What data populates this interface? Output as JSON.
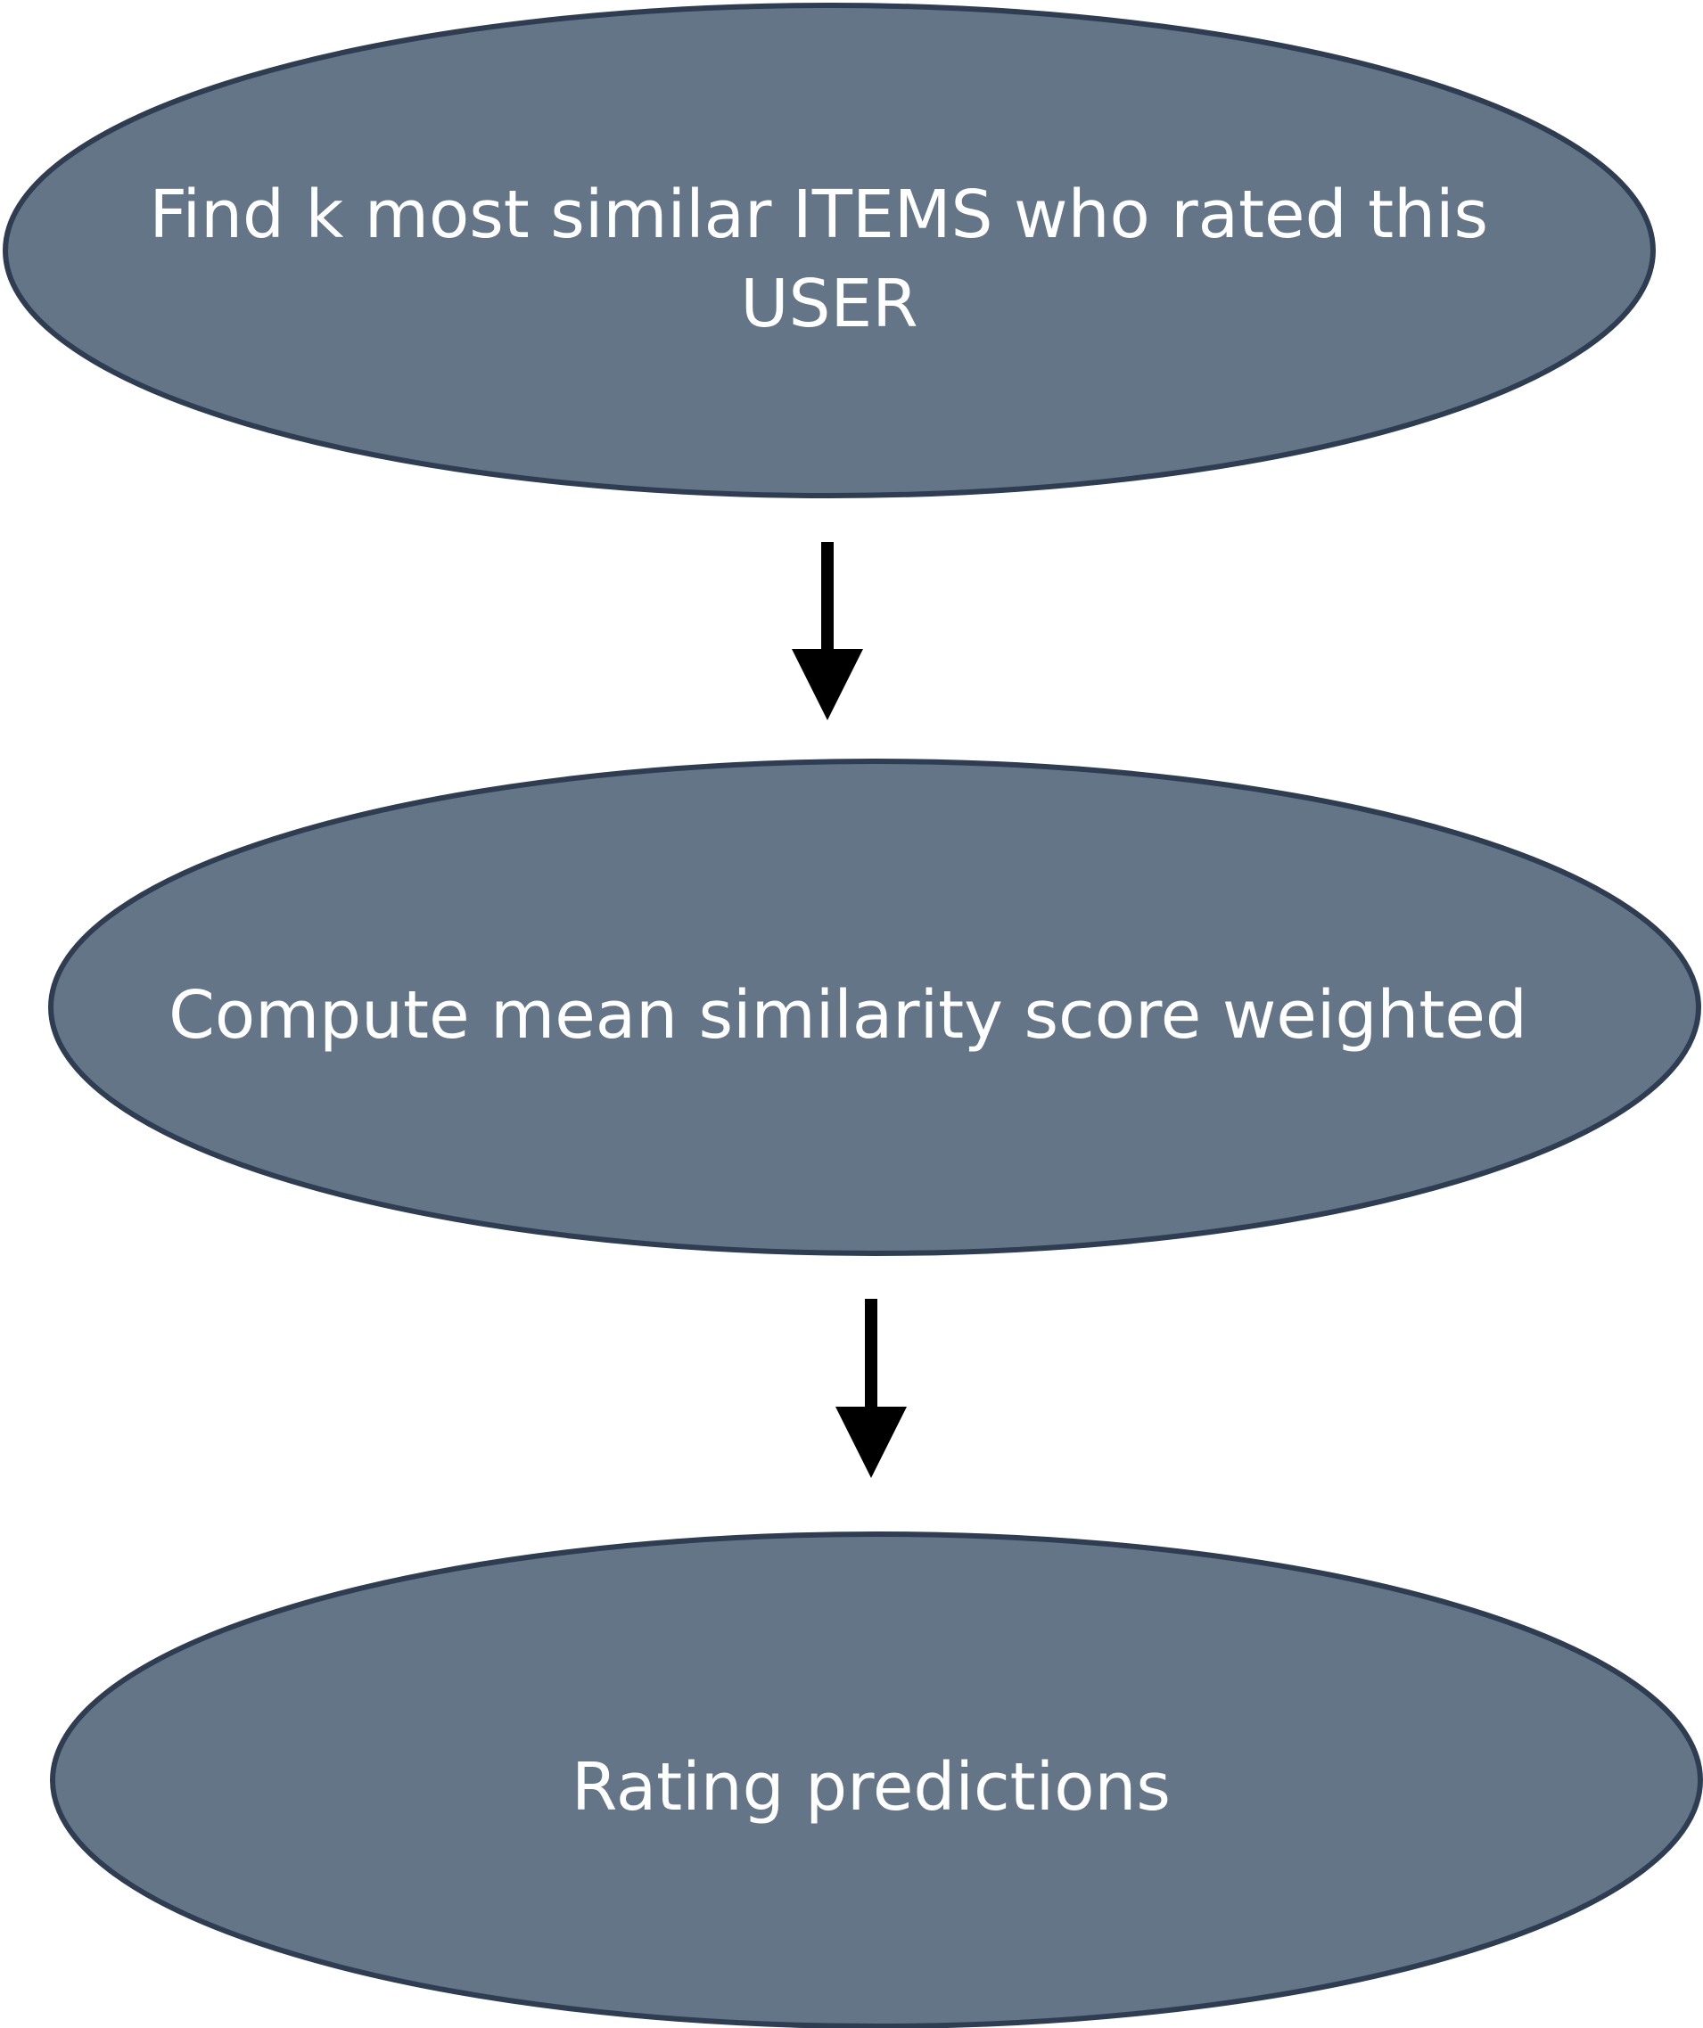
{
  "colors": {
    "node_fill": "#637587",
    "node_stroke": "#2f3d52",
    "arrow": "#000000",
    "text": "#ffffff"
  },
  "nodes": [
    {
      "id": "find-similar",
      "lines": [
        "Find k most similar ITEMS who rated this",
        "USER"
      ]
    },
    {
      "id": "compute-mean",
      "lines": [
        "Compute mean similarity score weighted"
      ]
    },
    {
      "id": "rating-predictions",
      "lines": [
        "Rating predictions"
      ]
    }
  ],
  "edges": [
    {
      "from": "find-similar",
      "to": "compute-mean"
    },
    {
      "from": "compute-mean",
      "to": "rating-predictions"
    }
  ]
}
